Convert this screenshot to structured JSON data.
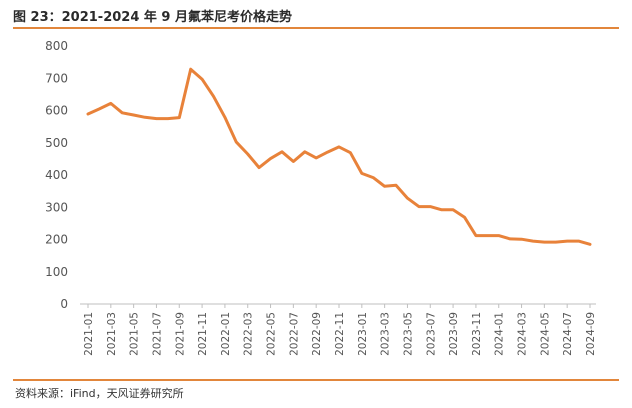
{
  "header": {
    "title": "图 23：2021-2024 年 9 月氟苯尼考价格走势"
  },
  "footer": {
    "source": "资料来源：iFind，天风证券研究所"
  },
  "colors": {
    "accent": "#e2863b",
    "line": "#e8823a",
    "axis": "#bfbfbf"
  },
  "chart_data": {
    "type": "line",
    "title": "",
    "xlabel": "",
    "ylabel": "",
    "ylim": [
      0,
      800
    ],
    "yticks": [
      0,
      100,
      200,
      300,
      400,
      500,
      600,
      700,
      800
    ],
    "grid": false,
    "legend": "none",
    "x_tick_labels": [
      "2021-01",
      "2021-03",
      "2021-05",
      "2021-07",
      "2021-09",
      "2021-11",
      "2022-01",
      "2022-03",
      "2022-05",
      "2022-07",
      "2022-09",
      "2022-11",
      "2023-01",
      "2023-03",
      "2023-05",
      "2023-07",
      "2023-09",
      "2023-11",
      "2024-01",
      "2024-03",
      "2024-05",
      "2024-07",
      "2024-09"
    ],
    "x": [
      "2021-01",
      "2021-02",
      "2021-03",
      "2021-04",
      "2021-05",
      "2021-06",
      "2021-07",
      "2021-08",
      "2021-09",
      "2021-10",
      "2021-11",
      "2021-12",
      "2022-01",
      "2022-02",
      "2022-03",
      "2022-04",
      "2022-05",
      "2022-06",
      "2022-07",
      "2022-08",
      "2022-09",
      "2022-10",
      "2022-11",
      "2022-12",
      "2023-01",
      "2023-02",
      "2023-03",
      "2023-04",
      "2023-05",
      "2023-06",
      "2023-07",
      "2023-08",
      "2023-09",
      "2023-10",
      "2023-11",
      "2023-12",
      "2024-01",
      "2024-02",
      "2024-03",
      "2024-04",
      "2024-05",
      "2024-06",
      "2024-07",
      "2024-08",
      "2024-09"
    ],
    "series": [
      {
        "values": [
          589,
          605,
          622,
          593,
          586,
          579,
          575,
          575,
          578,
          728,
          697,
          644,
          579,
          502,
          465,
          423,
          451,
          472,
          442,
          472,
          453,
          471,
          487,
          469,
          405,
          392,
          365,
          368,
          328,
          302,
          302,
          292,
          292,
          269,
          212,
          212,
          212,
          202,
          201,
          195,
          192,
          192,
          195,
          195,
          185
        ]
      }
    ]
  }
}
